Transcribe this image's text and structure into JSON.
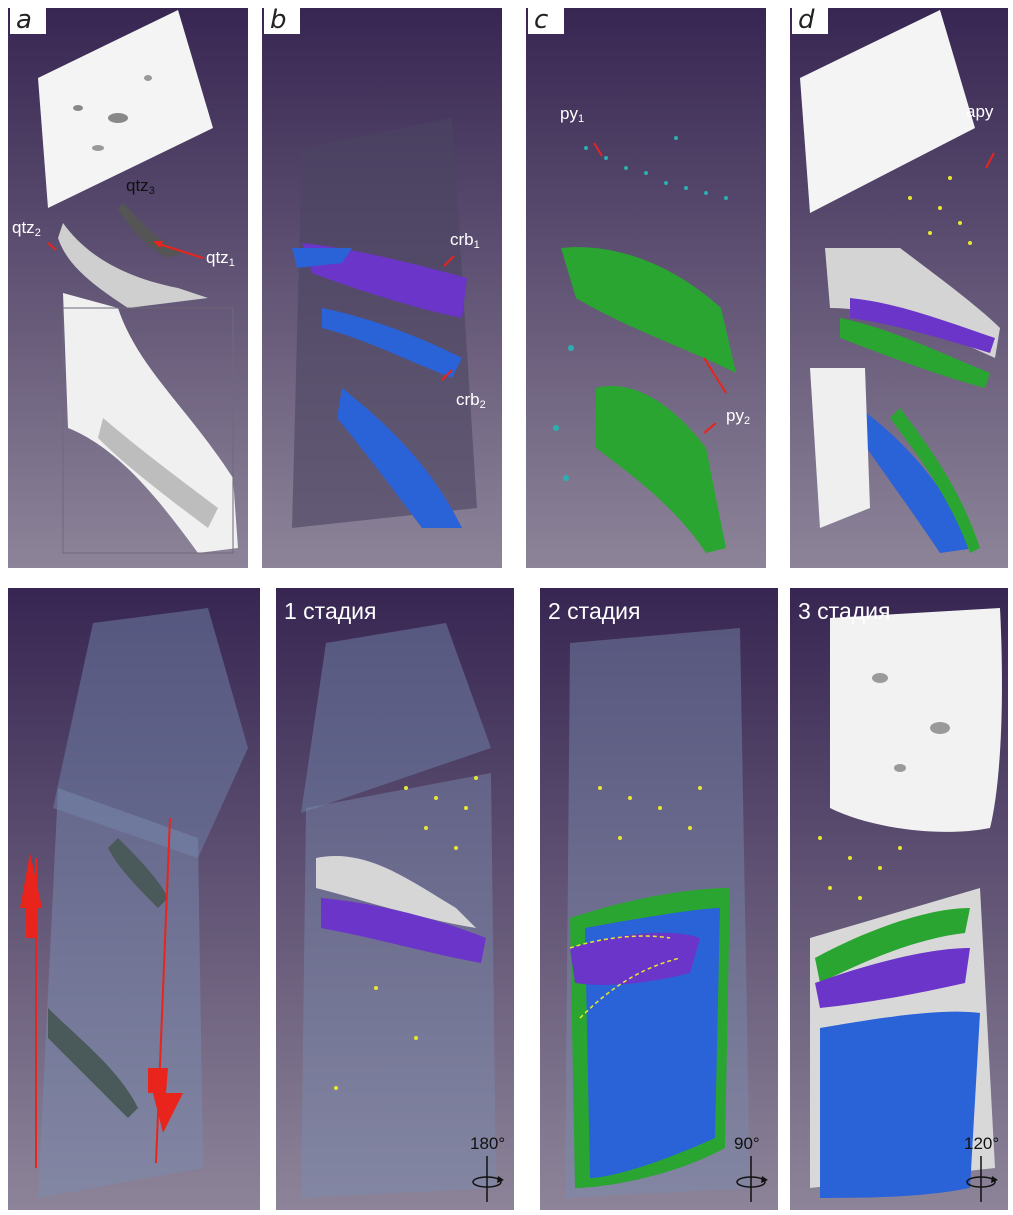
{
  "panels_top": [
    {
      "letter": "a",
      "labels": [
        {
          "text": "qtz",
          "sub": "3"
        },
        {
          "text": "qtz",
          "sub": "2"
        },
        {
          "text": "qtz",
          "sub": "1"
        }
      ]
    },
    {
      "letter": "b",
      "labels": [
        {
          "text": "crb",
          "sub": "1"
        },
        {
          "text": "crb",
          "sub": "2"
        }
      ]
    },
    {
      "letter": "c",
      "labels": [
        {
          "text": "py",
          "sub": "1"
        },
        {
          "text": "py",
          "sub": "2"
        }
      ]
    },
    {
      "letter": "d",
      "labels": [
        {
          "text": "apy",
          "sub": ""
        }
      ]
    }
  ],
  "panels_bottom": [
    {
      "stage": "",
      "rotation": ""
    },
    {
      "stage": "1 стадия",
      "rotation": "180°"
    },
    {
      "stage": "2 стадия",
      "rotation": "90°"
    },
    {
      "stage": "3 стадия",
      "rotation": "120°"
    }
  ],
  "colors": {
    "background_top": "#3b2a55",
    "background_bottom": "#8a7f98",
    "quartz": "#f2f2f2",
    "carbonate_1": "#6a35c8",
    "carbonate_2": "#2a62d8",
    "pyrite": "#2aa532",
    "arsenopyrite": "#e8e830",
    "pyrite_fine": "#2ab0b0",
    "arrow": "#e8241c"
  }
}
